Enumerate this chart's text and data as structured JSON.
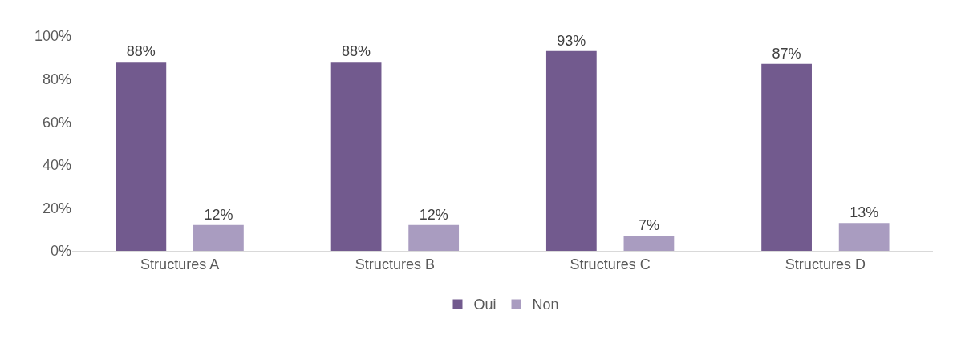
{
  "chart_data": {
    "type": "bar",
    "categories": [
      "Structures A",
      "Structures B",
      "Structures C",
      "Structures D"
    ],
    "series": [
      {
        "name": "Oui",
        "color": "#725a8e",
        "values": [
          88,
          88,
          93,
          87
        ],
        "value_labels": [
          "88%",
          "88%",
          "93%",
          "87%"
        ]
      },
      {
        "name": "Non",
        "color": "#a99cc0",
        "values": [
          12,
          12,
          7,
          13
        ],
        "value_labels": [
          "12%",
          "12%",
          "7%",
          "13%"
        ]
      }
    ],
    "ylim": [
      0,
      100
    ],
    "yticks": [
      {
        "value": 0,
        "label": "0%"
      },
      {
        "value": 20,
        "label": "20%"
      },
      {
        "value": 40,
        "label": "40%"
      },
      {
        "value": 60,
        "label": "60%"
      },
      {
        "value": 80,
        "label": "80%"
      },
      {
        "value": 100,
        "label": "100%"
      }
    ],
    "legend": "bottom"
  }
}
